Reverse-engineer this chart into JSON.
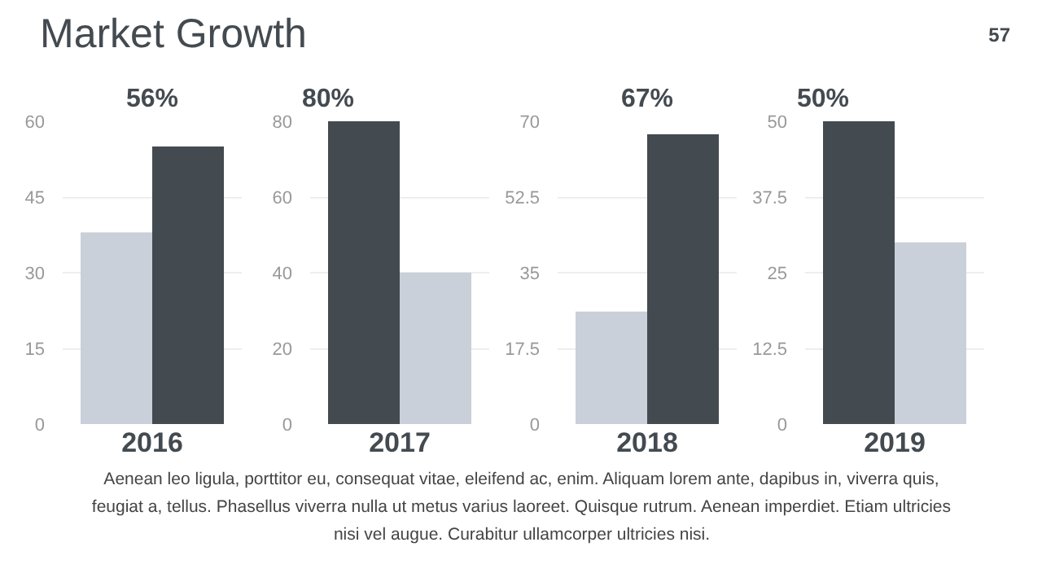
{
  "chart_data": [
    {
      "type": "other",
      "title": "Market Growth",
      "annotations": [
        "57"
      ]
    },
    {
      "type": "bar",
      "xlabel": "2016",
      "categories": [
        null,
        null
      ],
      "values": [
        38,
        55
      ],
      "colors": [
        "#c9d0d9",
        "#434a50"
      ],
      "ylim": [
        0,
        60
      ],
      "yticks": [
        0,
        15,
        30,
        45,
        60
      ],
      "grid": "y",
      "annotations": [
        "56%"
      ]
    },
    {
      "type": "bar",
      "xlabel": "2017",
      "categories": [
        null,
        null
      ],
      "values": [
        80,
        40
      ],
      "colors": [
        "#434a50",
        "#c9d0d9"
      ],
      "ylim": [
        0,
        80
      ],
      "yticks": [
        0,
        20,
        40,
        60,
        80
      ],
      "grid": "y",
      "annotations": [
        "80%"
      ]
    },
    {
      "type": "bar",
      "xlabel": "2018",
      "categories": [
        null,
        null
      ],
      "values": [
        26,
        67
      ],
      "colors": [
        "#c9d0d9",
        "#434a50"
      ],
      "ylim": [
        0,
        70
      ],
      "yticks": [
        0,
        17.5,
        35,
        52.5,
        70
      ],
      "grid": "y",
      "annotations": [
        "67%"
      ]
    },
    {
      "type": "bar",
      "xlabel": "2019",
      "categories": [
        null,
        null
      ],
      "values": [
        50,
        30
      ],
      "colors": [
        "#434a50",
        "#c9d0d9"
      ],
      "ylim": [
        0,
        50
      ],
      "yticks": [
        0,
        12.5,
        25,
        37.5,
        50
      ],
      "grid": "y",
      "annotations": [
        "50%"
      ]
    },
    {
      "type": "other",
      "annotations": [
        "Aenean leo ligula, porttitor eu, consequat vitae, eleifend ac, enim. Aliquam lorem ante, dapibus in, viverra quis, feugiat a, tellus. Phasellus viverra nulla ut metus varius laoreet. Quisque rutrum. Aenean imperdiet. Etiam ultricies nisi vel augue. Curabitur ullamcorper ultricies nisi."
      ]
    }
  ]
}
